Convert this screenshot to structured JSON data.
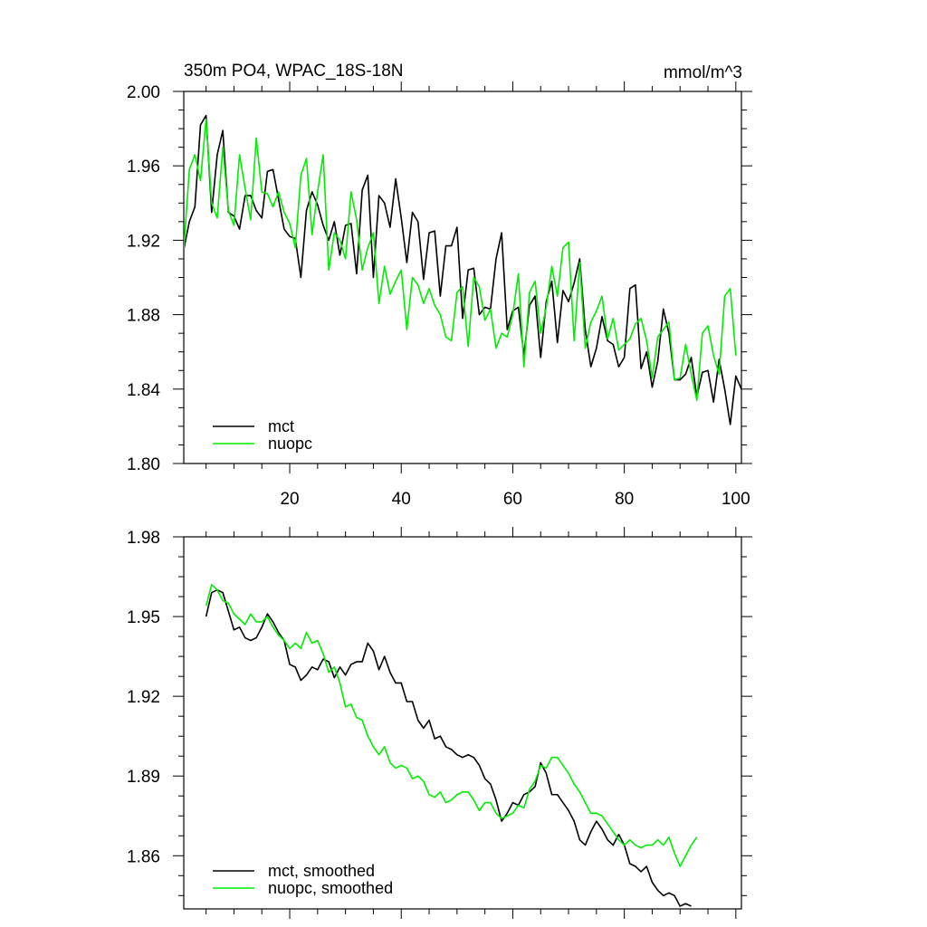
{
  "chart_data": [
    {
      "type": "line",
      "title": "350m PO4, WPAC_18S-18N",
      "units": "mmol/m^3",
      "xlim": [
        1,
        101
      ],
      "ylim": [
        1.8,
        2.0
      ],
      "xticks": [
        20,
        40,
        60,
        80,
        100
      ],
      "xtick_labels": [
        "20",
        "40",
        "60",
        "80",
        "100"
      ],
      "yticks": [
        1.8,
        1.84,
        1.88,
        1.92,
        1.96,
        2.0
      ],
      "ytick_labels": [
        "1.80",
        "1.84",
        "1.88",
        "1.92",
        "1.96",
        "2.00"
      ],
      "legend": "bottom-left",
      "series": [
        {
          "name": "mct",
          "color": "#000000",
          "x_start": 1,
          "values": [
            1.915,
            1.93,
            1.938,
            1.982,
            1.987,
            1.935,
            1.966,
            1.979,
            1.935,
            1.933,
            1.926,
            1.944,
            1.944,
            1.936,
            1.932,
            1.957,
            1.958,
            1.942,
            1.926,
            1.922,
            1.921,
            1.9,
            1.936,
            1.946,
            1.939,
            1.928,
            1.92,
            1.93,
            1.912,
            1.928,
            1.929,
            1.902,
            1.947,
            1.955,
            1.9,
            1.944,
            1.94,
            1.927,
            1.953,
            1.932,
            1.908,
            1.935,
            1.93,
            1.899,
            1.924,
            1.925,
            1.89,
            1.917,
            1.917,
            1.927,
            1.878,
            1.904,
            1.905,
            1.88,
            1.884,
            1.883,
            1.91,
            1.924,
            1.872,
            1.882,
            1.884,
            1.858,
            1.885,
            1.89,
            1.857,
            1.887,
            1.898,
            1.865,
            1.893,
            1.887,
            1.897,
            1.91,
            1.872,
            1.852,
            1.862,
            1.879,
            1.866,
            1.864,
            1.852,
            1.857,
            1.894,
            1.896,
            1.851,
            1.86,
            1.841,
            1.855,
            1.883,
            1.87,
            1.845,
            1.845,
            1.848,
            1.857,
            1.836,
            1.849,
            1.85,
            1.833,
            1.856,
            1.84,
            1.821,
            1.847,
            1.84
          ]
        },
        {
          "name": "nuopc",
          "color": "#00ee00",
          "x_start": 1,
          "values": [
            1.915,
            1.958,
            1.966,
            1.952,
            1.985,
            1.94,
            1.932,
            1.97,
            1.936,
            1.928,
            1.966,
            1.948,
            1.931,
            1.975,
            1.946,
            1.945,
            1.938,
            1.946,
            1.935,
            1.929,
            1.916,
            1.955,
            1.964,
            1.923,
            1.946,
            1.966,
            1.904,
            1.924,
            1.92,
            1.91,
            1.946,
            1.931,
            1.904,
            1.916,
            1.924,
            1.886,
            1.906,
            1.891,
            1.898,
            1.904,
            1.872,
            1.9,
            1.896,
            1.886,
            1.894,
            1.885,
            1.88,
            1.868,
            1.866,
            1.892,
            1.895,
            1.863,
            1.9,
            1.895,
            1.877,
            1.883,
            1.862,
            1.87,
            1.868,
            1.88,
            1.902,
            1.852,
            1.892,
            1.898,
            1.87,
            1.884,
            1.906,
            1.89,
            1.916,
            1.919,
            1.866,
            1.908,
            1.862,
            1.876,
            1.882,
            1.89,
            1.867,
            1.878,
            1.861,
            1.864,
            1.867,
            1.875,
            1.878,
            1.866,
            1.846,
            1.868,
            1.872,
            1.876,
            1.845,
            1.846,
            1.864,
            1.848,
            1.834,
            1.87,
            1.874,
            1.858,
            1.848,
            1.89,
            1.894,
            1.858
          ]
        }
      ],
      "legend_entries": [
        "mct",
        "nuopc"
      ]
    },
    {
      "type": "line",
      "xlim": [
        1,
        101
      ],
      "ylim": [
        1.84,
        1.98
      ],
      "yticks": [
        1.86,
        1.89,
        1.92,
        1.95,
        1.98
      ],
      "ytick_labels": [
        "1.86",
        "1.89",
        "1.92",
        "1.95",
        "1.98"
      ],
      "legend": "bottom-left",
      "series": [
        {
          "name": "mct, smoothed",
          "color": "#000000",
          "x_start": 5,
          "values": [
            1.95,
            1.959,
            1.96,
            1.959,
            1.952,
            1.945,
            1.946,
            1.942,
            1.941,
            1.942,
            1.946,
            1.951,
            1.948,
            1.944,
            1.941,
            1.932,
            1.931,
            1.926,
            1.928,
            1.931,
            1.93,
            1.934,
            1.933,
            1.927,
            1.931,
            1.928,
            1.932,
            1.933,
            1.933,
            1.94,
            1.937,
            1.93,
            1.935,
            1.929,
            1.925,
            1.925,
            1.918,
            1.918,
            1.911,
            1.908,
            1.911,
            1.904,
            1.905,
            1.901,
            1.9,
            1.898,
            1.897,
            1.898,
            1.897,
            1.894,
            1.889,
            1.887,
            1.881,
            1.873,
            1.876,
            1.88,
            1.879,
            1.883,
            1.884,
            1.886,
            1.895,
            1.891,
            1.883,
            1.883,
            1.88,
            1.877,
            1.873,
            1.866,
            1.864,
            1.869,
            1.873,
            1.87,
            1.866,
            1.864,
            1.868,
            1.864,
            1.857,
            1.856,
            1.854,
            1.856,
            1.85,
            1.847,
            1.845,
            1.846,
            1.845,
            1.841,
            1.842,
            1.841
          ]
        },
        {
          "name": "nuopc, smoothed",
          "color": "#00ee00",
          "x_start": 5,
          "values": [
            1.954,
            1.962,
            1.96,
            1.956,
            1.955,
            1.951,
            1.949,
            1.947,
            1.951,
            1.948,
            1.948,
            1.95,
            1.946,
            1.943,
            1.941,
            1.938,
            1.94,
            1.938,
            1.944,
            1.94,
            1.941,
            1.936,
            1.929,
            1.931,
            1.925,
            1.916,
            1.917,
            1.912,
            1.911,
            1.905,
            1.901,
            1.898,
            1.901,
            1.895,
            1.893,
            1.894,
            1.893,
            1.889,
            1.89,
            1.888,
            1.883,
            1.882,
            1.884,
            1.88,
            1.881,
            1.883,
            1.884,
            1.884,
            1.881,
            1.877,
            1.88,
            1.88,
            1.876,
            1.874,
            1.875,
            1.876,
            1.879,
            1.878,
            1.885,
            1.888,
            1.894,
            1.893,
            1.897,
            1.897,
            1.894,
            1.891,
            1.887,
            1.884,
            1.88,
            1.876,
            1.876,
            1.875,
            1.872,
            1.869,
            1.866,
            1.864,
            1.866,
            1.864,
            1.863,
            1.864,
            1.864,
            1.866,
            1.864,
            1.867,
            1.861,
            1.856,
            1.86,
            1.864,
            1.867
          ]
        }
      ],
      "legend_entries": [
        "mct, smoothed",
        "nuopc, smoothed"
      ]
    }
  ]
}
